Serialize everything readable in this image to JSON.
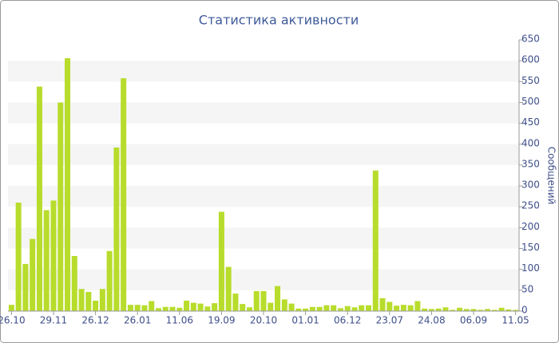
{
  "chart_data": {
    "type": "bar",
    "title": "Статистика активности",
    "y_label": "Сообщений",
    "categories": [
      "26.10",
      null,
      null,
      null,
      null,
      null,
      "29.11",
      null,
      null,
      null,
      null,
      null,
      "26.12",
      null,
      null,
      null,
      null,
      null,
      "26.01",
      null,
      null,
      null,
      null,
      null,
      "11.06",
      null,
      null,
      null,
      null,
      null,
      "19.09",
      null,
      null,
      null,
      null,
      null,
      "20.10",
      null,
      null,
      null,
      null,
      null,
      "01.01",
      null,
      null,
      null,
      null,
      null,
      "06.12",
      null,
      null,
      null,
      null,
      null,
      "23.07",
      null,
      null,
      null,
      null,
      null,
      "24.08",
      null,
      null,
      null,
      null,
      null,
      "06.09",
      null,
      null,
      null,
      null,
      null,
      "11.05"
    ],
    "values": [
      15,
      260,
      113,
      173,
      538,
      242,
      265,
      500,
      606,
      132,
      53,
      46,
      25,
      53,
      144,
      392,
      558,
      15,
      15,
      14,
      24,
      7,
      10,
      10,
      8,
      25,
      20,
      18,
      11,
      19,
      238,
      106,
      42,
      17,
      9,
      48,
      48,
      20,
      60,
      28,
      18,
      6,
      6,
      10,
      10,
      14,
      14,
      7,
      12,
      9,
      14,
      14,
      337,
      31,
      22,
      13,
      15,
      14,
      24,
      6,
      5,
      6,
      9,
      3,
      8,
      5,
      5,
      3,
      5,
      3,
      8,
      4,
      3
    ],
    "color": "#b8dc2c",
    "ylim": [
      0,
      650
    ],
    "yticks": [
      0,
      50,
      100,
      150,
      200,
      250,
      300,
      350,
      400,
      450,
      500,
      550,
      600,
      650
    ],
    "grid": true
  }
}
